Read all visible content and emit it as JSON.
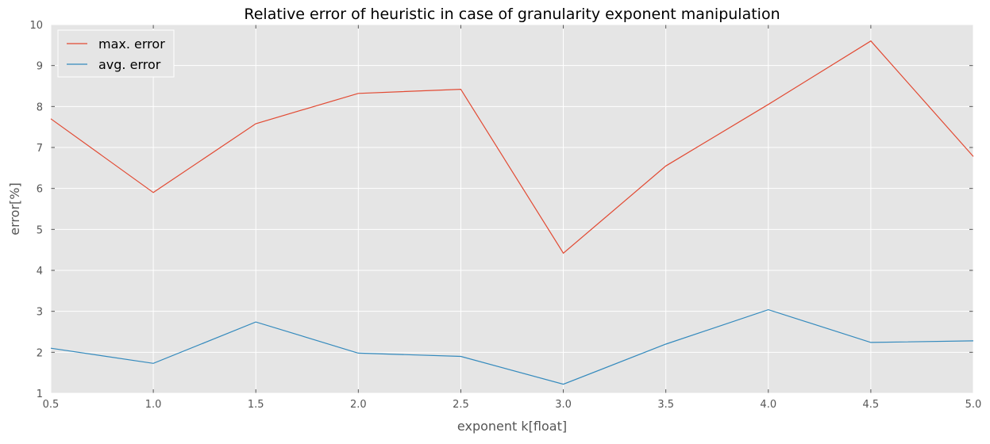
{
  "chart_data": {
    "type": "line",
    "title": "Relative error of heuristic in case of granularity exponent manipulation",
    "xlabel": "exponent k[float]",
    "ylabel": "error[%]",
    "xlim": [
      0.5,
      5.0
    ],
    "ylim": [
      1,
      10
    ],
    "xticks": [
      "0.5",
      "1.0",
      "1.5",
      "2.0",
      "2.5",
      "3.0",
      "3.5",
      "4.0",
      "4.5",
      "5.0"
    ],
    "yticks": [
      "1",
      "2",
      "3",
      "4",
      "5",
      "6",
      "7",
      "8",
      "9",
      "10"
    ],
    "grid": true,
    "legend_position": "upper-left",
    "x": [
      0.5,
      1.0,
      1.5,
      2.0,
      2.5,
      3.0,
      3.5,
      4.0,
      4.5,
      5.0
    ],
    "series": [
      {
        "name": "max. error",
        "color": "#E24A33",
        "values": [
          7.7,
          5.9,
          7.58,
          8.32,
          8.42,
          4.42,
          6.55,
          8.05,
          9.6,
          6.78
        ]
      },
      {
        "name": "avg. error",
        "color": "#348ABD",
        "values": [
          2.1,
          1.73,
          2.74,
          1.98,
          1.9,
          1.22,
          2.2,
          3.04,
          2.24,
          2.28
        ]
      }
    ],
    "style": {
      "plot_background": "#E5E5E5",
      "grid_color": "#FFFFFF"
    }
  }
}
